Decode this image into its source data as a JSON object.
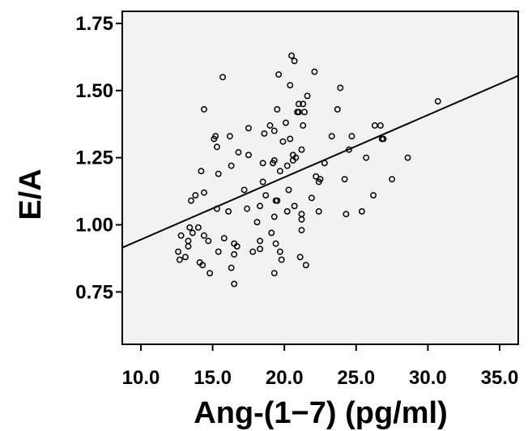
{
  "chart_data": {
    "type": "scatter",
    "title": "",
    "xlabel": "Ang-(1−7) (pg/ml)",
    "ylabel": "E/A",
    "xlim": [
      8.7,
      36.3
    ],
    "ylim": [
      0.555,
      1.795
    ],
    "x_ticks": [
      "10.0",
      "15.0",
      "20.0",
      "25.0",
      "30.0",
      "35.0"
    ],
    "y_ticks": [
      "0.75",
      "1.00",
      "1.25",
      "1.50",
      "1.75"
    ],
    "grid": false,
    "legend": "none",
    "colors": {
      "plot_background": "#f2f2f2",
      "marker": "#000000",
      "line": "#000000"
    },
    "fit_line": {
      "x": [
        8.7,
        36.3
      ],
      "y": [
        0.915,
        1.555
      ]
    },
    "points": [
      {
        "x": 12.6,
        "y": 0.9
      },
      {
        "x": 12.7,
        "y": 0.87
      },
      {
        "x": 12.8,
        "y": 0.96
      },
      {
        "x": 13.1,
        "y": 0.88
      },
      {
        "x": 13.3,
        "y": 0.92
      },
      {
        "x": 13.3,
        "y": 0.94
      },
      {
        "x": 13.4,
        "y": 0.99
      },
      {
        "x": 13.5,
        "y": 1.09
      },
      {
        "x": 13.6,
        "y": 0.97
      },
      {
        "x": 13.8,
        "y": 1.11
      },
      {
        "x": 14.0,
        "y": 0.99
      },
      {
        "x": 14.1,
        "y": 0.86
      },
      {
        "x": 14.2,
        "y": 1.2
      },
      {
        "x": 14.3,
        "y": 0.85
      },
      {
        "x": 14.4,
        "y": 1.12
      },
      {
        "x": 14.4,
        "y": 0.96
      },
      {
        "x": 14.4,
        "y": 1.43
      },
      {
        "x": 14.7,
        "y": 0.94
      },
      {
        "x": 14.8,
        "y": 0.82
      },
      {
        "x": 15.1,
        "y": 1.32
      },
      {
        "x": 15.2,
        "y": 1.33
      },
      {
        "x": 15.3,
        "y": 1.29
      },
      {
        "x": 15.3,
        "y": 1.06
      },
      {
        "x": 15.4,
        "y": 1.19
      },
      {
        "x": 15.4,
        "y": 0.9
      },
      {
        "x": 15.7,
        "y": 1.55
      },
      {
        "x": 15.8,
        "y": 0.95
      },
      {
        "x": 16.1,
        "y": 1.05
      },
      {
        "x": 16.2,
        "y": 1.33
      },
      {
        "x": 16.3,
        "y": 0.84
      },
      {
        "x": 16.3,
        "y": 1.22
      },
      {
        "x": 16.5,
        "y": 0.93
      },
      {
        "x": 16.5,
        "y": 0.78
      },
      {
        "x": 16.5,
        "y": 0.89
      },
      {
        "x": 16.7,
        "y": 0.92
      },
      {
        "x": 16.8,
        "y": 1.27
      },
      {
        "x": 17.2,
        "y": 1.13
      },
      {
        "x": 17.4,
        "y": 1.06
      },
      {
        "x": 17.5,
        "y": 1.36
      },
      {
        "x": 17.5,
        "y": 1.26
      },
      {
        "x": 17.8,
        "y": 0.9
      },
      {
        "x": 18.1,
        "y": 1.01
      },
      {
        "x": 18.3,
        "y": 0.91
      },
      {
        "x": 18.3,
        "y": 0.94
      },
      {
        "x": 18.3,
        "y": 1.07
      },
      {
        "x": 18.5,
        "y": 1.23
      },
      {
        "x": 18.5,
        "y": 1.16
      },
      {
        "x": 18.6,
        "y": 1.34
      },
      {
        "x": 18.7,
        "y": 1.11
      },
      {
        "x": 19.0,
        "y": 1.37
      },
      {
        "x": 19.1,
        "y": 0.97
      },
      {
        "x": 19.2,
        "y": 1.23
      },
      {
        "x": 19.3,
        "y": 1.24
      },
      {
        "x": 19.3,
        "y": 1.35
      },
      {
        "x": 19.3,
        "y": 1.03
      },
      {
        "x": 19.3,
        "y": 0.82
      },
      {
        "x": 19.4,
        "y": 0.93
      },
      {
        "x": 19.4,
        "y": 1.09
      },
      {
        "x": 19.5,
        "y": 1.43
      },
      {
        "x": 19.5,
        "y": 1.09
      },
      {
        "x": 19.6,
        "y": 1.56
      },
      {
        "x": 19.7,
        "y": 1.2
      },
      {
        "x": 19.7,
        "y": 0.9
      },
      {
        "x": 19.8,
        "y": 0.87
      },
      {
        "x": 19.9,
        "y": 1.31
      },
      {
        "x": 20.1,
        "y": 1.38
      },
      {
        "x": 20.2,
        "y": 1.05
      },
      {
        "x": 20.2,
        "y": 1.22
      },
      {
        "x": 20.3,
        "y": 1.13
      },
      {
        "x": 20.4,
        "y": 1.52
      },
      {
        "x": 20.4,
        "y": 1.32
      },
      {
        "x": 20.5,
        "y": 1.63
      },
      {
        "x": 20.6,
        "y": 1.24
      },
      {
        "x": 20.6,
        "y": 1.26
      },
      {
        "x": 20.7,
        "y": 1.07
      },
      {
        "x": 20.7,
        "y": 1.61
      },
      {
        "x": 20.8,
        "y": 1.25
      },
      {
        "x": 20.9,
        "y": 1.42
      },
      {
        "x": 21.0,
        "y": 1.45
      },
      {
        "x": 21.0,
        "y": 1.42
      },
      {
        "x": 21.1,
        "y": 0.88
      },
      {
        "x": 21.2,
        "y": 1.28
      },
      {
        "x": 21.2,
        "y": 1.04
      },
      {
        "x": 21.2,
        "y": 1.02
      },
      {
        "x": 21.2,
        "y": 0.98
      },
      {
        "x": 21.3,
        "y": 1.45
      },
      {
        "x": 21.3,
        "y": 1.37
      },
      {
        "x": 21.4,
        "y": 1.42
      },
      {
        "x": 21.5,
        "y": 0.85
      },
      {
        "x": 21.6,
        "y": 1.48
      },
      {
        "x": 21.9,
        "y": 1.1
      },
      {
        "x": 22.1,
        "y": 1.57
      },
      {
        "x": 22.2,
        "y": 1.18
      },
      {
        "x": 22.4,
        "y": 1.05
      },
      {
        "x": 22.4,
        "y": 1.16
      },
      {
        "x": 22.5,
        "y": 1.17
      },
      {
        "x": 22.8,
        "y": 1.23
      },
      {
        "x": 23.3,
        "y": 1.33
      },
      {
        "x": 23.7,
        "y": 1.43
      },
      {
        "x": 23.9,
        "y": 1.51
      },
      {
        "x": 24.2,
        "y": 1.17
      },
      {
        "x": 24.3,
        "y": 1.04
      },
      {
        "x": 24.5,
        "y": 1.28
      },
      {
        "x": 24.7,
        "y": 1.33
      },
      {
        "x": 25.4,
        "y": 1.05
      },
      {
        "x": 25.7,
        "y": 1.25
      },
      {
        "x": 26.2,
        "y": 1.11
      },
      {
        "x": 26.3,
        "y": 1.37
      },
      {
        "x": 26.7,
        "y": 1.37
      },
      {
        "x": 26.8,
        "y": 1.32
      },
      {
        "x": 26.9,
        "y": 1.32
      },
      {
        "x": 27.5,
        "y": 1.17
      },
      {
        "x": 28.6,
        "y": 1.25
      },
      {
        "x": 30.7,
        "y": 1.46
      }
    ]
  }
}
